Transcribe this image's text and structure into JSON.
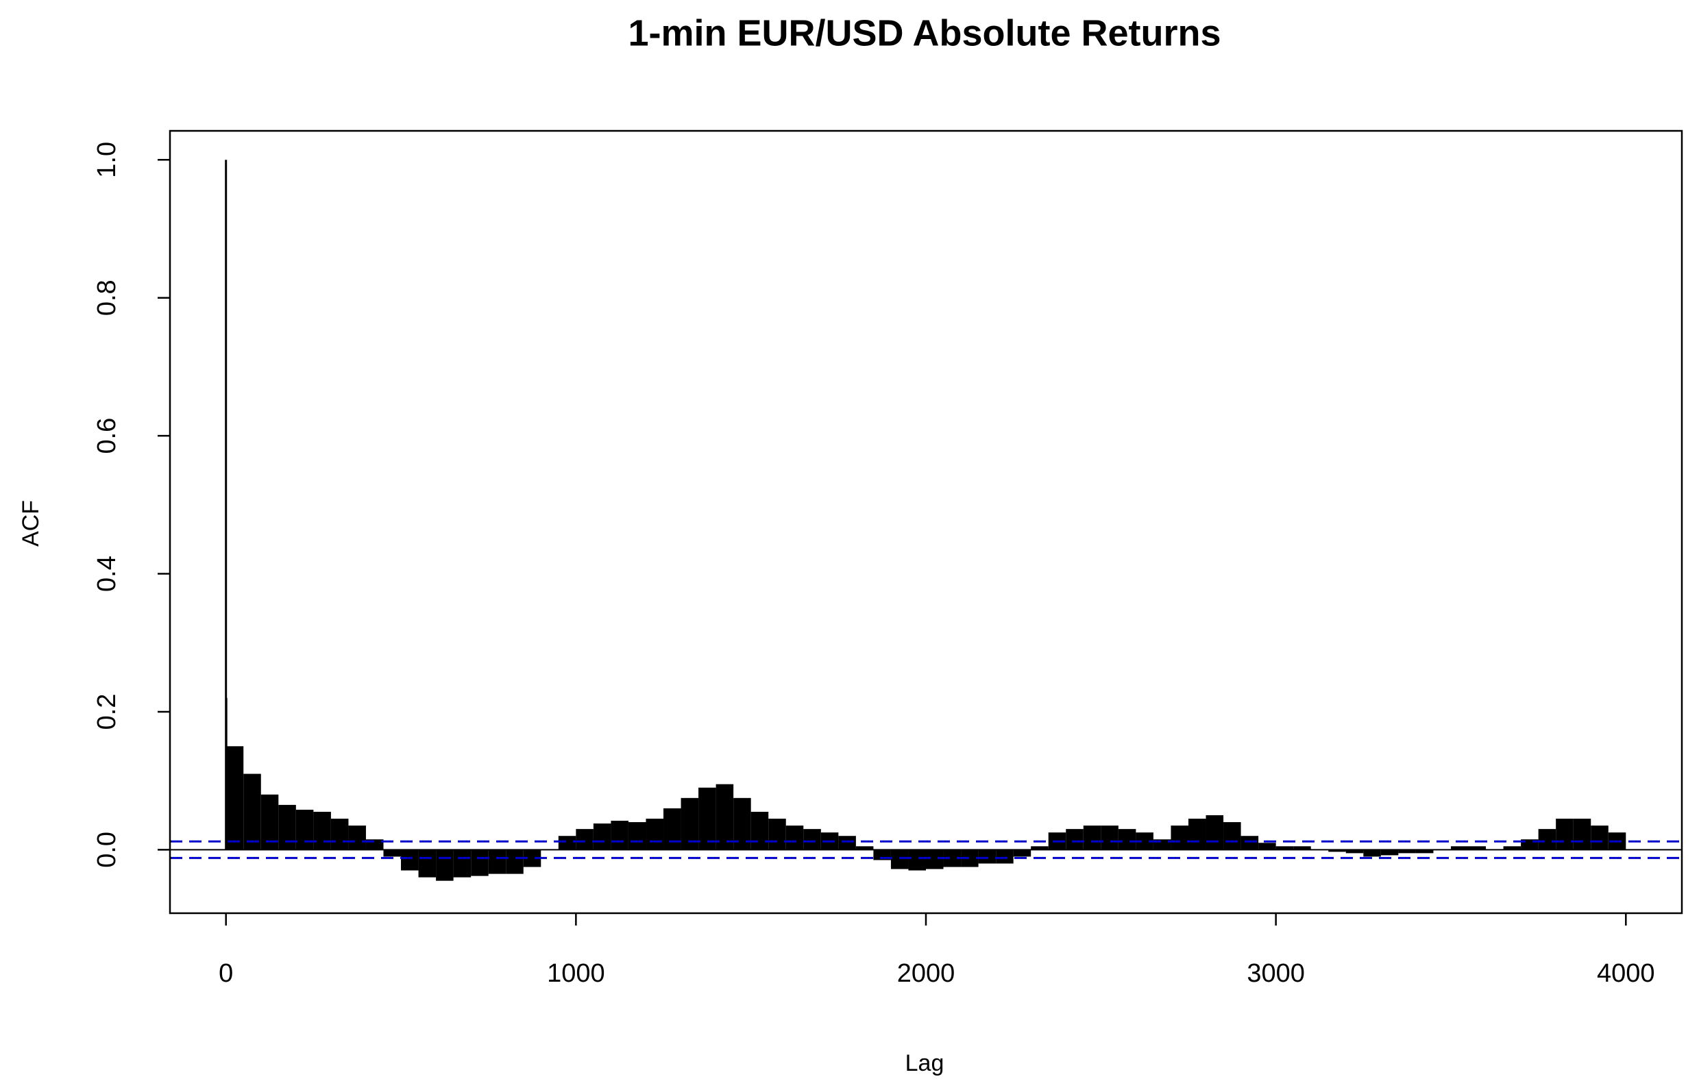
{
  "chart_data": {
    "type": "acf",
    "title": "1-min EUR/USD Absolute Returns",
    "x_label": "Lag",
    "y_label": "ACF",
    "x": [
      0,
      1,
      50,
      100,
      150,
      200,
      250,
      300,
      350,
      400,
      450,
      500,
      550,
      600,
      650,
      700,
      750,
      800,
      850,
      900,
      950,
      1000,
      1050,
      1100,
      1150,
      1200,
      1250,
      1300,
      1350,
      1400,
      1450,
      1500,
      1550,
      1600,
      1650,
      1700,
      1750,
      1800,
      1850,
      1900,
      1950,
      2000,
      2050,
      2100,
      2150,
      2200,
      2250,
      2300,
      2350,
      2400,
      2450,
      2500,
      2550,
      2600,
      2650,
      2700,
      2750,
      2800,
      2850,
      2900,
      2950,
      3000,
      3050,
      3100,
      3150,
      3200,
      3250,
      3300,
      3350,
      3400,
      3450,
      3500,
      3550,
      3600,
      3650,
      3700,
      3750,
      3800,
      3850,
      3900,
      3950,
      4000
    ],
    "values": [
      1.0,
      0.22,
      0.15,
      0.11,
      0.08,
      0.065,
      0.058,
      0.055,
      0.045,
      0.035,
      0.015,
      -0.01,
      -0.03,
      -0.04,
      -0.045,
      -0.04,
      -0.038,
      -0.035,
      -0.035,
      -0.025,
      0.0,
      0.02,
      0.03,
      0.038,
      0.042,
      0.04,
      0.045,
      0.06,
      0.075,
      0.09,
      0.095,
      0.075,
      0.055,
      0.045,
      0.035,
      0.03,
      0.025,
      0.02,
      0.005,
      -0.015,
      -0.028,
      -0.03,
      -0.028,
      -0.025,
      -0.025,
      -0.02,
      -0.02,
      -0.01,
      0.005,
      0.025,
      0.03,
      0.035,
      0.035,
      0.03,
      0.025,
      0.015,
      0.035,
      0.045,
      0.05,
      0.04,
      0.02,
      0.01,
      0.005,
      0.005,
      0.0,
      -0.003,
      -0.005,
      -0.01,
      -0.008,
      -0.005,
      -0.005,
      0.0,
      0.005,
      0.005,
      0.0,
      0.005,
      0.015,
      0.03,
      0.045,
      0.045,
      0.035,
      0.025
    ],
    "color": "#000000",
    "conf_limits": [
      -0.012,
      0.012
    ],
    "conf_color": "#0000cc",
    "xlim": [
      -160,
      4160
    ],
    "ylim": [
      -0.092,
      1.042
    ],
    "xticks": [
      0,
      1000,
      2000,
      3000,
      4000
    ],
    "yticks": [
      {
        "value": 0,
        "label": "0.0"
      },
      0.2,
      0.4,
      0.6,
      0.8,
      {
        "value": 1,
        "label": "1.0"
      }
    ]
  }
}
